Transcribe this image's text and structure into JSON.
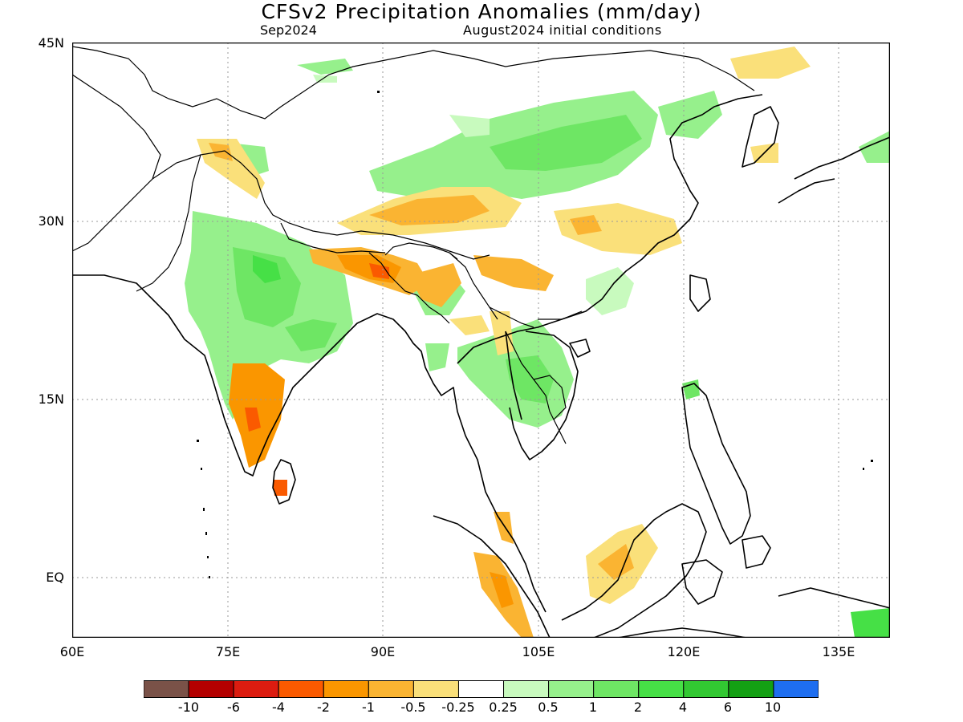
{
  "title": "CFSv2 Precipitation Anomalies (mm/day)",
  "subtitle_left": "Sep2024",
  "subtitle_right": "August2024 initial conditions",
  "axes": {
    "lat_labels": [
      "45N",
      "30N",
      "15N",
      "EQ"
    ],
    "lon_labels": [
      "60E",
      "75E",
      "90E",
      "105E",
      "120E",
      "135E"
    ]
  },
  "colorbar": {
    "colors": [
      "#7a5248",
      "#b40000",
      "#dc1c10",
      "#fa5a00",
      "#fa9600",
      "#fab432",
      "#fae07a",
      "#ffffff",
      "#c8fabe",
      "#96f08c",
      "#6ee664",
      "#46e046",
      "#32c832",
      "#14a014",
      "#1e6ef0"
    ],
    "labels": [
      "-10",
      "-6",
      "-4",
      "-2",
      "-1",
      "-0.5",
      "-0.25",
      "0.25",
      "0.5",
      "1",
      "2",
      "4",
      "6",
      "10"
    ]
  }
}
